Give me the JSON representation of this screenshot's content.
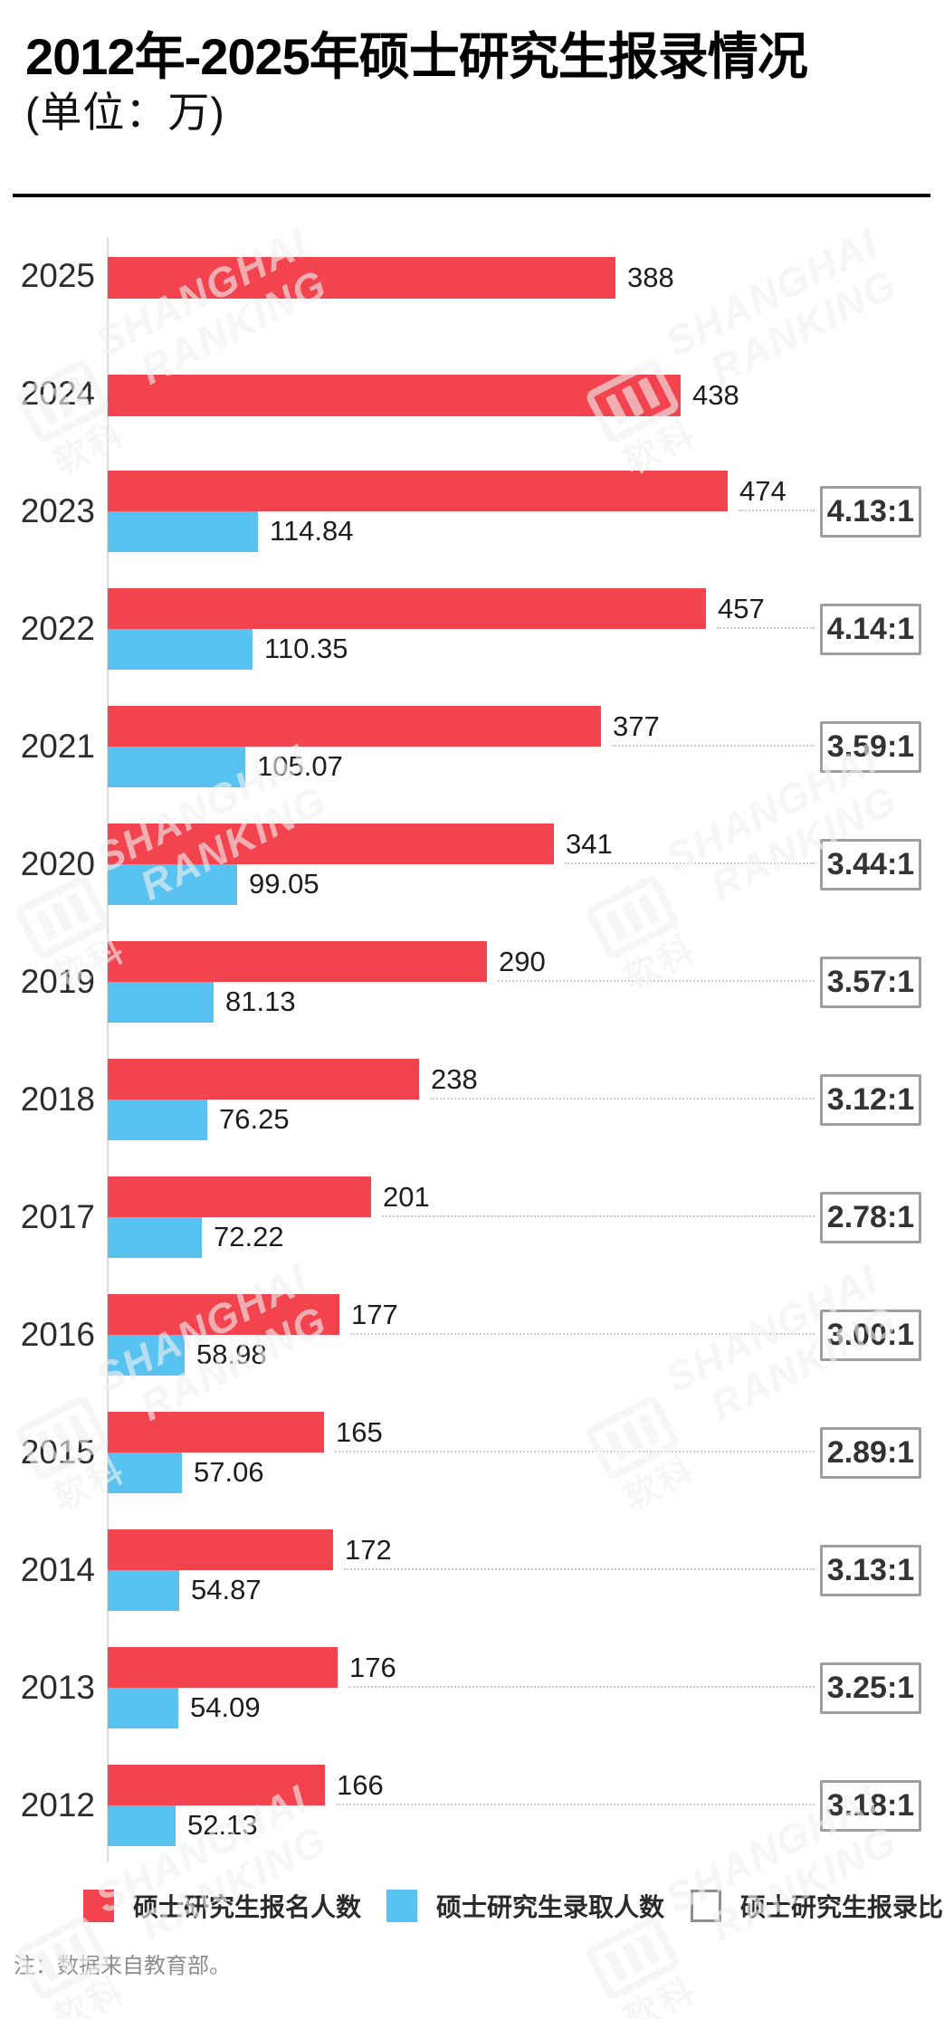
{
  "header": {
    "title": "2012年-2025年硕士研究生报录情况",
    "subtitle": "(单位：万)"
  },
  "chart_data": {
    "type": "bar",
    "orientation": "horizontal",
    "title": "2012年-2025年硕士研究生报录情况",
    "unit_label": "(单位：万)",
    "categories": [
      "2025",
      "2024",
      "2023",
      "2022",
      "2021",
      "2020",
      "2019",
      "2018",
      "2017",
      "2016",
      "2015",
      "2014",
      "2013",
      "2012"
    ],
    "series": [
      {
        "name": "硕士研究生报名人数",
        "color": "#f2434e",
        "values": [
          388,
          438,
          474,
          457,
          377,
          341,
          290,
          238,
          201,
          177,
          165,
          172,
          176,
          166
        ]
      },
      {
        "name": "硕士研究生录取人数",
        "color": "#58c3f1",
        "values": [
          null,
          null,
          114.84,
          110.35,
          105.07,
          99.05,
          81.13,
          76.25,
          72.22,
          58.98,
          57.06,
          54.87,
          54.09,
          52.13
        ]
      }
    ],
    "ratio_series": {
      "name": "硕士研究生报录比",
      "values": [
        null,
        null,
        "4.13:1",
        "4.14:1",
        "3.59:1",
        "3.44:1",
        "3.57:1",
        "3.12:1",
        "2.78:1",
        "3.00:1",
        "2.89:1",
        "3.13:1",
        "3.25:1",
        "3.18:1"
      ]
    },
    "xlim": [
      0,
      500
    ],
    "grid": false,
    "legend_position": "bottom"
  },
  "legend": {
    "items": [
      {
        "label": "硕士研究生报名人数",
        "color": "#f2434e",
        "style": "fill"
      },
      {
        "label": "硕士研究生录取人数",
        "color": "#58c3f1",
        "style": "fill"
      },
      {
        "label": "硕士研究生报录比",
        "color": "#ffffff",
        "style": "outline"
      }
    ]
  },
  "note": "注：数据来自教育部。",
  "watermark": {
    "line1": "SHANGHAI",
    "line2": "RANKING",
    "logo_text": "软科"
  },
  "colors": {
    "applicants_bar": "#f2434e",
    "admissions_bar": "#58c3f1",
    "ratio_box_border": "#9e9e9e",
    "axis": "#dcdcdc",
    "connector": "#cccccc",
    "note_text": "#8d8d8d"
  }
}
